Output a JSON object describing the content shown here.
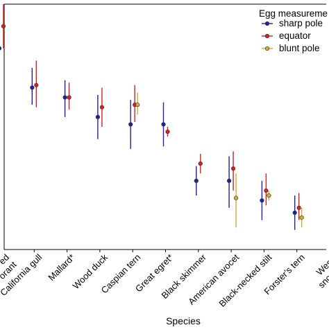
{
  "chart_data": {
    "type": "scatter",
    "subtype": "point-with-error-bars",
    "xlabel": "Species",
    "categories": [
      "ed\norant",
      "California gull",
      "Mallard*",
      "Wood duck",
      "Caspian tern",
      "Great egret*",
      "Black skimmer",
      "American avocet",
      "Black-necked stilt",
      "Forster's tern",
      "Weste\nsnowy p"
    ],
    "ylim": [
      0,
      100
    ],
    "yticks_shown": false,
    "grid": false,
    "legend": {
      "title": "Egg measureme",
      "placement": "top-right"
    },
    "series": [
      {
        "name": "sharp pole",
        "color": "#1f1fa0",
        "points": [
          {
            "category": 0,
            "y": 82,
            "low": 72,
            "high": 93
          },
          {
            "category": 1,
            "y": 66,
            "low": 59,
            "high": 74
          },
          {
            "category": 2,
            "y": 62,
            "low": 54,
            "high": 69
          },
          {
            "category": 3,
            "y": 54,
            "low": 45,
            "high": 63
          },
          {
            "category": 4,
            "y": 51,
            "low": 41,
            "high": 61
          },
          {
            "category": 5,
            "y": 51,
            "low": 42,
            "high": 60
          },
          {
            "category": 6,
            "y": 28,
            "low": 22,
            "high": 34
          },
          {
            "category": 7,
            "y": 28,
            "low": 17,
            "high": 38
          },
          {
            "category": 8,
            "y": 20,
            "low": 12,
            "high": 28
          },
          {
            "category": 9,
            "y": 15,
            "low": 8,
            "high": 22
          }
        ]
      },
      {
        "name": "equator",
        "color": "#d42020",
        "points": [
          {
            "category": 0,
            "y": 91,
            "low": 82,
            "high": 100
          },
          {
            "category": 1,
            "y": 67,
            "low": 58,
            "high": 77
          },
          {
            "category": 2,
            "y": 62,
            "low": 57,
            "high": 68
          },
          {
            "category": 3,
            "y": 58,
            "low": 50,
            "high": 66
          },
          {
            "category": 4,
            "y": 59,
            "low": 52,
            "high": 67
          },
          {
            "category": 5,
            "y": 48,
            "low": 46,
            "high": 50
          },
          {
            "category": 6,
            "y": 35,
            "low": 31,
            "high": 39
          },
          {
            "category": 7,
            "y": 33,
            "low": 24,
            "high": 40
          },
          {
            "category": 8,
            "y": 24,
            "low": 18,
            "high": 31
          },
          {
            "category": 9,
            "y": 17,
            "low": 12,
            "high": 23
          }
        ]
      },
      {
        "name": "blunt pole",
        "color": "#d4aa30",
        "points": [
          {
            "category": 4,
            "y": 59,
            "low": 55,
            "high": 64
          },
          {
            "category": 7,
            "y": 21,
            "low": 9,
            "high": 31
          },
          {
            "category": 8,
            "y": 22,
            "low": 20,
            "high": 24
          },
          {
            "category": 9,
            "y": 13,
            "low": 9,
            "high": 17
          }
        ]
      }
    ]
  }
}
